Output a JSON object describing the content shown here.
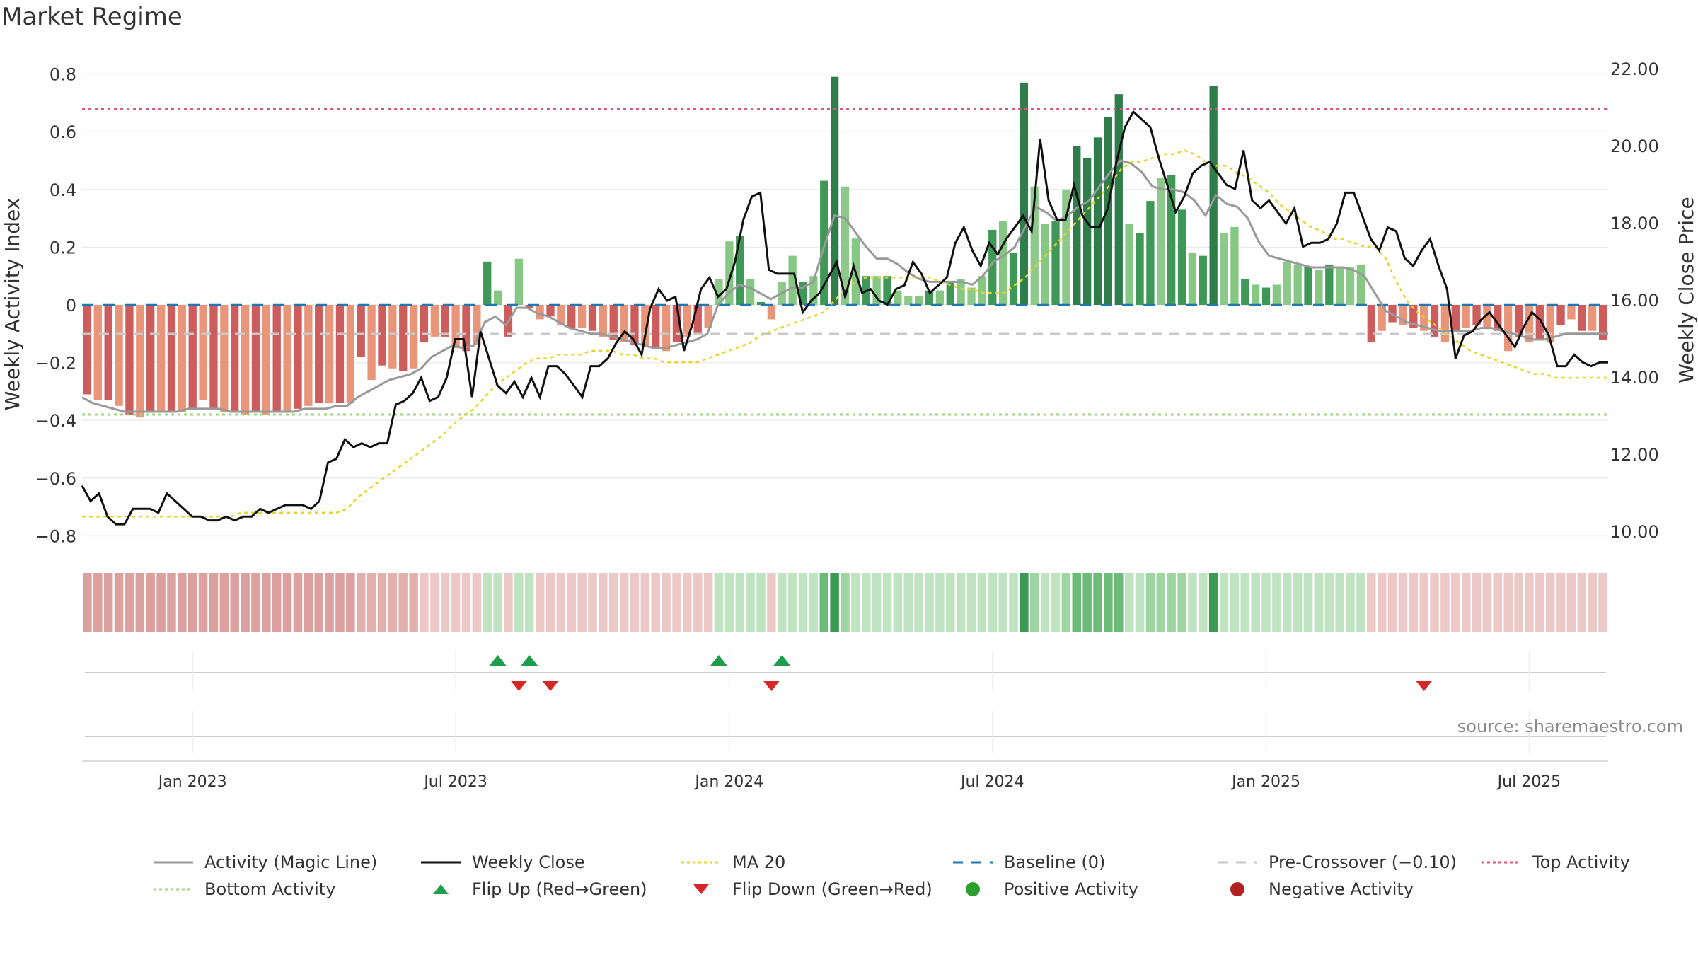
{
  "page": {
    "title": "Market Regime",
    "source": "source: sharemaestro.com"
  },
  "chart_data": {
    "type": "bar",
    "title": "Market Regime",
    "ylabel_left": "Weekly Activity Index",
    "ylabel_right": "Weekly Close Price",
    "xlabel": "",
    "ylim_left": [
      -0.85,
      0.85
    ],
    "ylim_right": [
      9.5,
      22.5
    ],
    "left_ticks": [
      "0.8",
      "0.6",
      "0.4",
      "0.2",
      "0",
      "−0.2",
      "−0.4",
      "−0.6",
      "−0.8"
    ],
    "left_tick_values": [
      0.8,
      0.6,
      0.4,
      0.2,
      0,
      -0.2,
      -0.4,
      -0.6,
      -0.8
    ],
    "right_ticks": [
      "22.00",
      "20.00",
      "18.00",
      "16.00",
      "14.00",
      "12.00",
      "10.00"
    ],
    "right_tick_values": [
      22,
      20,
      18,
      16,
      14,
      12,
      10
    ],
    "x_ticks": [
      "Jan 2023",
      "Jul 2023",
      "Jan 2024",
      "Jul 2024",
      "Jan 2025",
      "Jul 2025"
    ],
    "x_tick_weeks": [
      10,
      35,
      61,
      86,
      112,
      137
    ],
    "grid": true,
    "legend_position": "bottom",
    "reference_lines": {
      "baseline": 0,
      "pre_crossover": -0.1,
      "top_activity": 0.68,
      "bottom_activity": -0.38
    },
    "activity_bars": [
      -0.31,
      -0.33,
      -0.33,
      -0.35,
      -0.38,
      -0.39,
      -0.37,
      -0.37,
      -0.37,
      -0.37,
      -0.36,
      -0.33,
      -0.36,
      -0.37,
      -0.37,
      -0.38,
      -0.37,
      -0.38,
      -0.37,
      -0.37,
      -0.36,
      -0.35,
      -0.34,
      -0.34,
      -0.34,
      -0.34,
      -0.18,
      -0.26,
      -0.21,
      -0.22,
      -0.23,
      -0.22,
      -0.13,
      -0.11,
      -0.11,
      -0.15,
      -0.16,
      -0.14,
      0.15,
      0.05,
      -0.11,
      0.16,
      -0.01,
      -0.05,
      -0.04,
      -0.07,
      -0.08,
      -0.08,
      -0.09,
      -0.11,
      -0.12,
      -0.13,
      -0.14,
      -0.14,
      -0.15,
      -0.16,
      -0.13,
      -0.11,
      -0.1,
      -0.08,
      0.09,
      0.22,
      0.24,
      0.09,
      0.01,
      -0.05,
      0.08,
      0.17,
      0.08,
      0.1,
      0.43,
      0.79,
      0.41,
      0.23,
      0.1,
      0.1,
      0.1,
      0.05,
      0.03,
      0.03,
      0.05,
      0.05,
      0.08,
      0.09,
      0.06,
      0.1,
      0.26,
      0.29,
      0.18,
      0.77,
      0.41,
      0.28,
      0.29,
      0.4,
      0.55,
      0.51,
      0.58,
      0.65,
      0.73,
      0.28,
      0.25,
      0.36,
      0.44,
      0.45,
      0.33,
      0.18,
      0.17,
      0.76,
      0.25,
      0.27,
      0.09,
      0.07,
      0.06,
      0.07,
      0.15,
      0.14,
      0.13,
      0.12,
      0.14,
      0.13,
      0.13,
      0.14,
      -0.13,
      -0.09,
      -0.06,
      -0.07,
      -0.08,
      -0.09,
      -0.11,
      -0.13,
      -0.09,
      -0.08,
      -0.07,
      -0.08,
      -0.09,
      -0.16,
      -0.11,
      -0.13,
      -0.12,
      -0.13,
      -0.07,
      -0.05,
      -0.09,
      -0.09,
      -0.12
    ],
    "magic_line": [
      -0.32,
      -0.34,
      -0.35,
      -0.36,
      -0.37,
      -0.37,
      -0.37,
      -0.37,
      -0.37,
      -0.37,
      -0.36,
      -0.36,
      -0.36,
      -0.36,
      -0.37,
      -0.37,
      -0.37,
      -0.37,
      -0.37,
      -0.37,
      -0.37,
      -0.36,
      -0.36,
      -0.36,
      -0.35,
      -0.35,
      -0.32,
      -0.3,
      -0.28,
      -0.26,
      -0.25,
      -0.24,
      -0.22,
      -0.18,
      -0.16,
      -0.14,
      -0.15,
      -0.14,
      -0.06,
      -0.04,
      -0.07,
      -0.01,
      -0.01,
      -0.03,
      -0.04,
      -0.06,
      -0.08,
      -0.09,
      -0.1,
      -0.1,
      -0.11,
      -0.12,
      -0.13,
      -0.14,
      -0.15,
      -0.15,
      -0.14,
      -0.13,
      -0.12,
      -0.1,
      0.0,
      0.04,
      0.07,
      0.06,
      0.04,
      0.02,
      0.04,
      0.06,
      0.06,
      0.08,
      0.2,
      0.31,
      0.3,
      0.25,
      0.2,
      0.16,
      0.16,
      0.14,
      0.11,
      0.09,
      0.08,
      0.08,
      0.08,
      0.08,
      0.07,
      0.1,
      0.15,
      0.17,
      0.2,
      0.27,
      0.34,
      0.32,
      0.29,
      0.31,
      0.34,
      0.36,
      0.41,
      0.46,
      0.5,
      0.49,
      0.46,
      0.41,
      0.4,
      0.4,
      0.39,
      0.36,
      0.31,
      0.38,
      0.35,
      0.34,
      0.3,
      0.22,
      0.17,
      0.16,
      0.15,
      0.14,
      0.13,
      0.13,
      0.13,
      0.13,
      0.12,
      0.1,
      0.04,
      -0.02,
      -0.04,
      -0.06,
      -0.07,
      -0.08,
      -0.09,
      -0.09,
      -0.09,
      -0.09,
      -0.08,
      -0.08,
      -0.09,
      -0.1,
      -0.11,
      -0.12,
      -0.12,
      -0.11,
      -0.1,
      -0.1,
      -0.1,
      -0.1,
      -0.1
    ],
    "weekly_close": [
      11.2,
      10.8,
      11.0,
      10.4,
      10.2,
      10.2,
      10.6,
      10.6,
      10.6,
      10.5,
      11.0,
      10.8,
      10.6,
      10.4,
      10.4,
      10.3,
      10.3,
      10.4,
      10.3,
      10.4,
      10.4,
      10.6,
      10.5,
      10.6,
      10.7,
      10.7,
      10.7,
      10.6,
      10.8,
      11.8,
      11.9,
      12.4,
      12.2,
      12.3,
      12.2,
      12.3,
      12.3,
      13.3,
      13.4,
      13.6,
      14.0,
      13.4,
      13.5,
      14.0,
      15.0,
      15.0,
      13.5,
      15.2,
      14.5,
      13.8,
      13.6,
      13.9,
      13.5,
      14.0,
      13.5,
      14.3,
      14.3,
      14.1,
      13.8,
      13.5,
      14.3,
      14.3,
      14.5,
      14.9,
      15.2,
      15.0,
      14.6,
      15.8,
      16.3,
      16.0,
      16.1,
      14.7,
      15.4,
      16.3,
      16.6,
      16.1,
      16.3,
      17.0,
      18.1,
      18.7,
      18.8,
      16.8,
      16.7,
      16.7,
      16.7,
      15.7,
      16.0,
      16.2,
      16.6,
      17.0,
      16.1,
      16.9,
      16.2,
      16.3,
      16.0,
      15.9,
      16.3,
      16.4,
      17.0,
      16.7,
      16.2,
      16.4,
      16.6,
      17.5,
      17.9,
      17.3,
      16.9,
      17.5,
      17.2,
      17.6,
      17.9,
      18.2,
      17.8,
      20.2,
      18.6,
      18.1,
      18.1,
      19.0,
      18.2,
      17.9,
      17.9,
      18.4,
      19.6,
      20.5,
      20.9,
      20.7,
      20.5,
      19.7,
      19.0,
      18.3,
      18.7,
      19.3,
      19.5,
      19.6,
      19.3,
      19.0,
      18.9,
      19.9,
      18.6,
      18.4,
      18.6,
      18.3,
      18.0,
      18.4,
      17.4,
      17.5,
      17.5,
      17.6,
      18.0,
      18.8,
      18.8,
      18.2,
      17.6,
      17.3,
      17.9,
      17.8,
      17.1,
      16.9,
      17.3,
      17.6,
      16.9,
      16.3,
      14.5,
      15.1,
      15.2,
      15.5,
      15.7,
      15.4,
      15.1,
      14.8,
      15.3,
      15.7,
      15.5,
      15.1,
      14.3,
      14.3,
      14.6,
      14.4,
      14.3,
      14.4,
      14.4
    ],
    "ma20": [
      10.4,
      10.4,
      10.4,
      10.4,
      10.4,
      10.4,
      10.4,
      10.4,
      10.4,
      10.4,
      10.4,
      10.4,
      10.4,
      10.4,
      10.4,
      10.5,
      10.5,
      10.5,
      10.5,
      10.5,
      10.5,
      10.5,
      10.5,
      10.5,
      10.5,
      10.6,
      10.9,
      11.1,
      11.3,
      11.5,
      11.7,
      11.9,
      12.1,
      12.3,
      12.5,
      12.8,
      13.0,
      13.2,
      13.5,
      13.8,
      14.0,
      14.2,
      14.4,
      14.5,
      14.5,
      14.6,
      14.6,
      14.6,
      14.7,
      14.7,
      14.7,
      14.6,
      14.6,
      14.5,
      14.5,
      14.4,
      14.4,
      14.4,
      14.4,
      14.5,
      14.6,
      14.7,
      14.8,
      14.9,
      15.1,
      15.2,
      15.3,
      15.4,
      15.5,
      15.6,
      15.7,
      16.0,
      16.3,
      16.5,
      16.6,
      16.6,
      16.6,
      16.6,
      16.6,
      16.6,
      16.6,
      16.5,
      16.4,
      16.3,
      16.3,
      16.2,
      16.2,
      16.2,
      16.4,
      16.6,
      16.9,
      17.2,
      17.5,
      17.8,
      18.1,
      18.4,
      18.7,
      19.0,
      19.4,
      19.6,
      19.6,
      19.7,
      19.8,
      19.8,
      19.9,
      19.8,
      19.6,
      19.5,
      19.5,
      19.3,
      19.2,
      19.0,
      18.8,
      18.5,
      18.3,
      18.1,
      17.9,
      17.8,
      17.6,
      17.6,
      17.5,
      17.4,
      17.4,
      17.1,
      16.5,
      16.0,
      15.7,
      15.5,
      15.3,
      15.1,
      14.9,
      14.7,
      14.6,
      14.5,
      14.4,
      14.3,
      14.2,
      14.1,
      14.1,
      14.0,
      14.0,
      14.0,
      14.0,
      14.0,
      14.0
    ],
    "regime_strip": [
      -0.7,
      -0.7,
      -0.7,
      -0.7,
      -0.7,
      -0.7,
      -0.7,
      -0.7,
      -0.7,
      -0.7,
      -0.7,
      -0.7,
      -0.7,
      -0.7,
      -0.7,
      -0.7,
      -0.7,
      -0.7,
      -0.7,
      -0.7,
      -0.7,
      -0.7,
      -0.7,
      -0.7,
      -0.7,
      -0.7,
      -0.5,
      -0.5,
      -0.5,
      -0.5,
      -0.5,
      -0.5,
      -0.4,
      -0.4,
      -0.4,
      -0.4,
      -0.4,
      -0.4,
      0.3,
      0.3,
      -0.4,
      0.3,
      0.2,
      -0.3,
      -0.3,
      -0.3,
      -0.3,
      -0.3,
      -0.3,
      -0.3,
      -0.3,
      -0.3,
      -0.3,
      -0.3,
      -0.3,
      -0.3,
      -0.3,
      -0.3,
      -0.3,
      -0.3,
      0.4,
      0.4,
      0.4,
      0.4,
      0.3,
      -0.3,
      0.3,
      0.3,
      0.3,
      0.3,
      0.6,
      1.0,
      0.5,
      0.3,
      0.3,
      0.3,
      0.3,
      0.3,
      0.3,
      0.3,
      0.3,
      0.3,
      0.3,
      0.3,
      0.3,
      0.3,
      0.4,
      0.4,
      0.4,
      1.0,
      0.5,
      0.4,
      0.4,
      0.5,
      0.6,
      0.6,
      0.6,
      0.7,
      0.7,
      0.4,
      0.4,
      0.5,
      0.5,
      0.5,
      0.5,
      0.4,
      0.4,
      1.0,
      0.4,
      0.4,
      0.3,
      0.3,
      0.3,
      0.3,
      0.3,
      0.3,
      0.3,
      0.3,
      0.3,
      0.3,
      0.3,
      0.3,
      -0.3,
      -0.3,
      -0.3,
      -0.3,
      -0.3,
      -0.3,
      -0.3,
      -0.3,
      -0.3,
      -0.3,
      -0.3,
      -0.3,
      -0.3,
      -0.3,
      -0.3,
      -0.3,
      -0.3,
      -0.3,
      -0.3,
      -0.3,
      -0.3,
      -0.3,
      -0.3
    ],
    "flip_up_weeks": [
      39,
      42,
      60,
      66
    ],
    "flip_down_weeks": [
      41,
      44,
      65,
      127
    ],
    "series": [
      {
        "name": "Activity (Magic Line)",
        "color": "#999999"
      },
      {
        "name": "Weekly Close",
        "color": "#111111"
      },
      {
        "name": "MA 20",
        "color": "#e8d42a"
      },
      {
        "name": "Baseline (0)",
        "color": "#1f77b4"
      },
      {
        "name": "Pre-Crossover (−0.10)",
        "color": "#c8c8c8"
      },
      {
        "name": "Top Activity",
        "color": "#e0557a"
      },
      {
        "name": "Bottom Activity",
        "color": "#9fd67e"
      },
      {
        "name": "Flip Up (Red→Green)",
        "color": "#1e9e4a"
      },
      {
        "name": "Flip Down (Green→Red)",
        "color": "#d62728"
      },
      {
        "name": "Positive Activity",
        "color": "#2ca02c"
      },
      {
        "name": "Negative Activity",
        "color": "#b22222"
      }
    ]
  },
  "legend": {
    "items": [
      {
        "label": "Activity (Magic Line)",
        "kind": "solid",
        "color": "#999999"
      },
      {
        "label": "Weekly Close",
        "kind": "solid",
        "color": "#111111"
      },
      {
        "label": "MA 20",
        "kind": "dotted",
        "color": "#e8d42a"
      },
      {
        "label": "Baseline (0)",
        "kind": "dashed",
        "color": "#1f77b4"
      },
      {
        "label": "Pre-Crossover (−0.10)",
        "kind": "dashed",
        "color": "#c8c8c8"
      },
      {
        "label": "Top Activity",
        "kind": "dotted",
        "color": "#e0557a"
      },
      {
        "label": "Bottom Activity",
        "kind": "dotted",
        "color": "#9fd67e"
      },
      {
        "label": "Flip Up (Red→Green)",
        "kind": "tri-up",
        "color": "#1e9e4a"
      },
      {
        "label": "Flip Down (Green→Red)",
        "kind": "tri-down",
        "color": "#d62728"
      },
      {
        "label": "Positive Activity",
        "kind": "dot",
        "color": "#2ca02c"
      },
      {
        "label": "Negative Activity",
        "kind": "dot",
        "color": "#b22222"
      }
    ]
  }
}
